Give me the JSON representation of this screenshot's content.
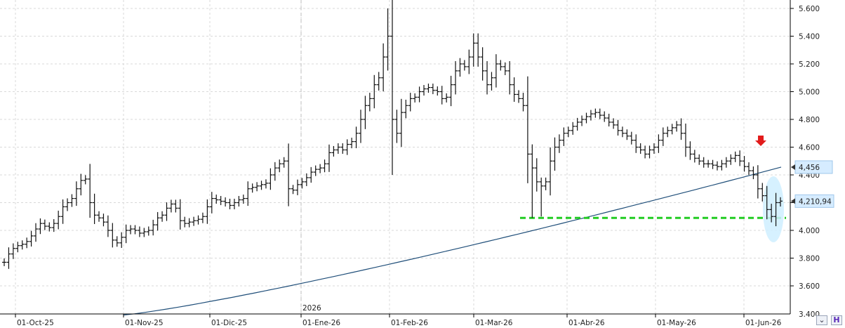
{
  "chart_data": {
    "type": "ohlc",
    "ylim": [
      3400,
      5700
    ],
    "y_ticks": [
      3600,
      3800,
      4000,
      4200,
      4400,
      4600,
      4800,
      5000,
      5200,
      5400,
      5600
    ],
    "y_tick_labels": [
      "3.600",
      "3.800",
      "4.000",
      "4.200",
      "4.400",
      "4.600",
      "4.800",
      "5.000",
      "5.200",
      "5.400",
      "5.600"
    ],
    "y_bottom_partial_label": "3.400",
    "x_date_labels": [
      "01-Oct-25",
      "01-Nov-25",
      "01-Dic-25",
      "01-Ene-26",
      "01-Feb-26",
      "01-Mar-26",
      "01-Abr-26",
      "01-May-26",
      "01-Jun-26"
    ],
    "year_marker": "2026",
    "grid": true,
    "series": [
      {
        "name": "",
        "kind": "ohlc",
        "x_start": "2025-10-01",
        "close": [
          3770,
          3830,
          3870,
          3890,
          3900,
          3920,
          3960,
          4010,
          4050,
          4030,
          4020,
          4050,
          4100,
          4170,
          4200,
          4230,
          4300,
          4360,
          4370,
          4200,
          4110,
          4090,
          4060,
          4000,
          3930,
          3910,
          3950,
          4000,
          4010,
          4000,
          3980,
          3990,
          4000,
          4040,
          4090,
          4110,
          4160,
          4190,
          4160,
          4070,
          4050,
          4060,
          4070,
          4080,
          4100,
          4170,
          4230,
          4220,
          4210,
          4200,
          4180,
          4200,
          4220,
          4230,
          4300,
          4310,
          4320,
          4330,
          4340,
          4400,
          4450,
          4480,
          4500,
          4300,
          4290,
          4330,
          4350,
          4380,
          4420,
          4440,
          4450,
          4480,
          4560,
          4580,
          4600,
          4580,
          4620,
          4640,
          4700,
          4800,
          4900,
          4950,
          5050,
          5100,
          5250,
          5400,
          4800,
          4700,
          4850,
          4900,
          4950,
          4960,
          5000,
          5020,
          5030,
          5010,
          5000,
          4950,
          4960,
          5050,
          5150,
          5200,
          5180,
          5250,
          5350,
          5250,
          5150,
          5050,
          5100,
          5200,
          5180,
          5150,
          5050,
          4980,
          4950,
          4900,
          4550,
          4450,
          4350,
          4320,
          4350,
          4500,
          4600,
          4650,
          4700,
          4720,
          4750,
          4780,
          4800,
          4820,
          4840,
          4850,
          4830,
          4810,
          4780,
          4760,
          4720,
          4700,
          4680,
          4650,
          4600,
          4580,
          4550,
          4580,
          4600,
          4650,
          4700,
          4720,
          4740,
          4760,
          4700,
          4600,
          4550,
          4520,
          4500,
          4480,
          4480,
          4470,
          4460,
          4480,
          4500,
          4520,
          4540,
          4500,
          4460,
          4430,
          4400,
          4300,
          4250,
          4150,
          4100,
          4200,
          4210.94
        ],
        "high_low_estimated": true
      },
      {
        "name": "",
        "kind": "moving-average",
        "color": "#1f4e79",
        "from_date": "2025-11-01",
        "start_value": 3390,
        "end_value": 4456,
        "last_value_label": "4,456"
      }
    ],
    "last_price_label": "4,210,94",
    "annotations": {
      "support_level": 4090,
      "support_color": "#22cc22",
      "support_style": "dashed",
      "red_arrow_color": "#e21b1b",
      "ellipse_color": "#cfefff"
    }
  },
  "ui": {
    "icons": [
      "chart-settings-icon",
      "chart-h-icon"
    ],
    "icon_glyphs": [
      "⌄",
      "H"
    ]
  }
}
